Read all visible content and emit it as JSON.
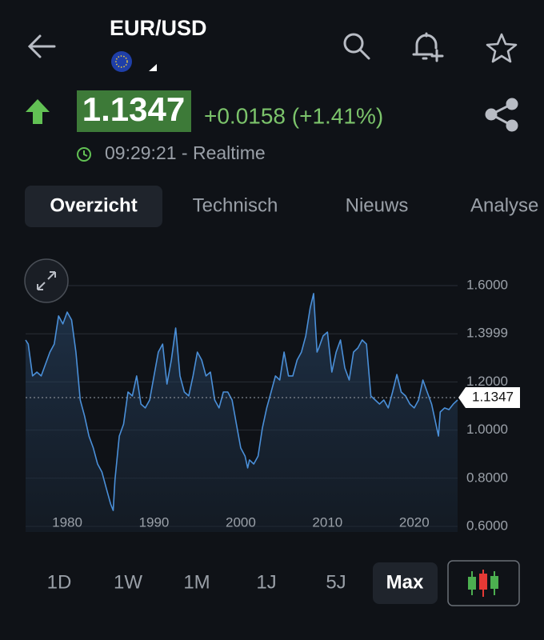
{
  "header": {
    "title": "EUR/USD"
  },
  "quote": {
    "price": "1.1347",
    "change": "+0.0158 (+1.41%)",
    "time": "09:29:21 - Realtime"
  },
  "tabs": [
    "Overzicht",
    "Technisch",
    "Nieuws",
    "Analyse"
  ],
  "chart_data": {
    "type": "line",
    "x": [
      1975.2,
      1975.5,
      1976,
      1976.5,
      1977,
      1977.5,
      1978,
      1978.5,
      1979,
      1979.5,
      1980,
      1980.5,
      1981,
      1981.5,
      1982,
      1982.5,
      1983,
      1983.5,
      1984,
      1984.5,
      1985,
      1985.3,
      1985.5,
      1986,
      1986.5,
      1987,
      1987.5,
      1988,
      1988.5,
      1989,
      1989.5,
      1990,
      1990.5,
      1991,
      1991.5,
      1992,
      1992.5,
      1993,
      1993.5,
      1994,
      1994.5,
      1995,
      1995.5,
      1996,
      1996.5,
      1997,
      1997.5,
      1998,
      1998.5,
      1999,
      1999.5,
      2000,
      2000.5,
      2000.8,
      2001,
      2001.5,
      2002,
      2002.5,
      2003,
      2003.5,
      2004,
      2004.5,
      2005,
      2005.5,
      2006,
      2006.5,
      2007,
      2007.5,
      2008,
      2008.4,
      2008.8,
      2009,
      2009.5,
      2010,
      2010.5,
      2011,
      2011.5,
      2012,
      2012.5,
      2013,
      2013.5,
      2014,
      2014.5,
      2015,
      2015.5,
      2016,
      2016.5,
      2017,
      2017.5,
      2018,
      2018.5,
      2019,
      2019.5,
      2020,
      2020.5,
      2021,
      2021.5,
      2022,
      2022.5,
      2022.8,
      2023,
      2023.5,
      2024,
      2024.5,
      2025
    ],
    "series": [
      {
        "color": "#4a8fd8",
        "values": [
          1.374,
          1.357,
          1.225,
          1.241,
          1.225,
          1.274,
          1.324,
          1.357,
          1.474,
          1.441,
          1.49,
          1.457,
          1.324,
          1.125,
          1.058,
          0.975,
          0.926,
          0.859,
          0.826,
          0.759,
          0.693,
          0.666,
          0.793,
          0.975,
          1.025,
          1.158,
          1.142,
          1.225,
          1.108,
          1.092,
          1.125,
          1.225,
          1.324,
          1.357,
          1.191,
          1.291,
          1.424,
          1.225,
          1.158,
          1.142,
          1.225,
          1.324,
          1.291,
          1.225,
          1.241,
          1.125,
          1.092,
          1.158,
          1.158,
          1.125,
          1.025,
          0.926,
          0.892,
          0.843,
          0.876,
          0.859,
          0.892,
          1.009,
          1.092,
          1.158,
          1.225,
          1.208,
          1.324,
          1.225,
          1.225,
          1.291,
          1.324,
          1.391,
          1.507,
          1.567,
          1.324,
          1.341,
          1.391,
          1.407,
          1.241,
          1.324,
          1.374,
          1.258,
          1.208,
          1.324,
          1.341,
          1.374,
          1.357,
          1.142,
          1.125,
          1.108,
          1.125,
          1.092,
          1.158,
          1.231,
          1.158,
          1.142,
          1.108,
          1.092,
          1.125,
          1.208,
          1.158,
          1.108,
          1.025,
          0.975,
          1.075,
          1.092,
          1.085,
          1.108,
          1.125
        ]
      }
    ],
    "xlim": [
      1975.2,
      2025
    ],
    "xticks": [
      1980,
      1990,
      2000,
      2010,
      2020
    ],
    "ylim": [
      0.6,
      1.6
    ],
    "yticks": [
      {
        "value": 0.6,
        "label": "0.6000"
      },
      {
        "value": 0.8,
        "label": "0.8000"
      },
      {
        "value": 1.0,
        "label": "1.0000"
      },
      {
        "value": 1.2,
        "label": "1.2000"
      },
      {
        "value": 1.3999,
        "label": "1.3999"
      },
      {
        "value": 1.6,
        "label": "1.6000"
      }
    ],
    "reference_line": 1.1347,
    "grid": true
  },
  "ranges": [
    "1D",
    "1W",
    "1M",
    "1J",
    "5J",
    "Max"
  ]
}
